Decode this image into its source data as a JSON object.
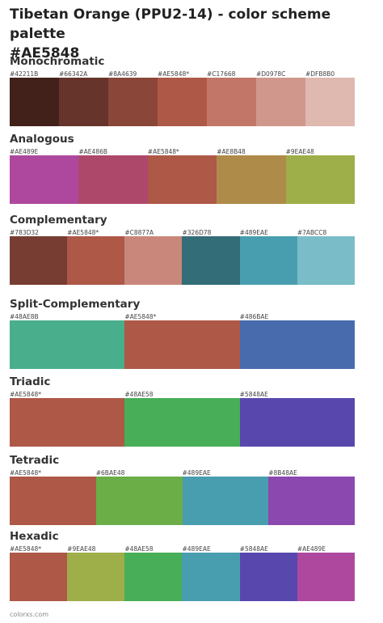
{
  "title_line1": "Tibetan Orange (PPU2-14) - color scheme palette",
  "title_line2": "#AE5848",
  "footer": "colorxs.com",
  "sections": [
    {
      "name": "Monochromatic",
      "colors": [
        {
          "label": "#42211B",
          "hex": "#42211B"
        },
        {
          "label": "#66342A",
          "hex": "#66342A"
        },
        {
          "label": "#8A4639",
          "hex": "#8A4639"
        },
        {
          "label": "#AE5848*",
          "hex": "#AE5848"
        },
        {
          "label": "#C17668",
          "hex": "#C17668"
        },
        {
          "label": "#D0978C",
          "hex": "#D0978C"
        },
        {
          "label": "#DFB8B0",
          "hex": "#DFB8B0"
        }
      ]
    },
    {
      "name": "Analogous",
      "colors": [
        {
          "label": "#AE489E",
          "hex": "#AE489E"
        },
        {
          "label": "#AE486B",
          "hex": "#AE486B"
        },
        {
          "label": "#AE5848*",
          "hex": "#AE5848"
        },
        {
          "label": "#AE8B48",
          "hex": "#AE8B48"
        },
        {
          "label": "#9EAE48",
          "hex": "#9EAE48"
        }
      ]
    },
    {
      "name": "Complementary",
      "colors": [
        {
          "label": "#783D32",
          "hex": "#783D32"
        },
        {
          "label": "#AE5848*",
          "hex": "#AE5848"
        },
        {
          "label": "#C8877A",
          "hex": "#C8877A"
        },
        {
          "label": "#326D78",
          "hex": "#326D78"
        },
        {
          "label": "#489EAE",
          "hex": "#489EAE"
        },
        {
          "label": "#7ABCC8",
          "hex": "#7ABCC8"
        }
      ]
    },
    {
      "name": "Split-Complementary",
      "colors": [
        {
          "label": "#48AE8B",
          "hex": "#48AE8B"
        },
        {
          "label": "#AE5848*",
          "hex": "#AE5848"
        },
        {
          "label": "#486BAE",
          "hex": "#486BAE"
        }
      ]
    },
    {
      "name": "Triadic",
      "colors": [
        {
          "label": "#AE5848*",
          "hex": "#AE5848"
        },
        {
          "label": "#48AE58",
          "hex": "#48AE58"
        },
        {
          "label": "#5848AE",
          "hex": "#5848AE"
        }
      ]
    },
    {
      "name": "Tetradic",
      "colors": [
        {
          "label": "#AE5848*",
          "hex": "#AE5848"
        },
        {
          "label": "#6BAE48",
          "hex": "#6BAE48"
        },
        {
          "label": "#489EAE",
          "hex": "#489EAE"
        },
        {
          "label": "#8B48AE",
          "hex": "#8B48AE"
        }
      ]
    },
    {
      "name": "Hexadic",
      "colors": [
        {
          "label": "#AE5848*",
          "hex": "#AE5848"
        },
        {
          "label": "#9EAE48",
          "hex": "#9EAE48"
        },
        {
          "label": "#48AE58",
          "hex": "#48AE58"
        },
        {
          "label": "#489EAE",
          "hex": "#489EAE"
        },
        {
          "label": "#5848AE",
          "hex": "#5848AE"
        },
        {
          "label": "#AE489E",
          "hex": "#AE489E"
        }
      ]
    }
  ]
}
